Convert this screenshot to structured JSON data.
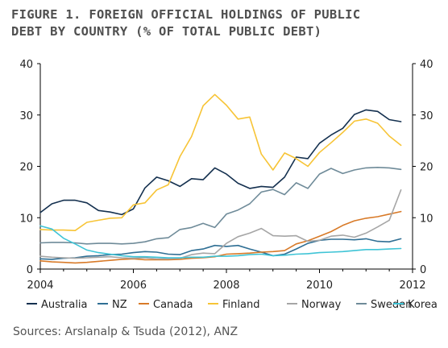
{
  "title_lines": [
    "FIGURE 1. FOREIGN OFFICIAL HOLDINGS OF PUBLIC",
    "DEBT BY COUNTRY (% OF TOTAL PUBLIC DEBT)"
  ],
  "source": "Sources: Arslanalp & Tsuda (2012), ANZ",
  "chart_data": {
    "type": "line",
    "title": "FIGURE 1. FOREIGN OFFICIAL HOLDINGS OF PUBLIC DEBT BY COUNTRY (% OF TOTAL PUBLIC DEBT)",
    "xlabel": "",
    "ylabel": "",
    "xlim": [
      2004,
      2012
    ],
    "ylim": [
      0,
      40
    ],
    "x_ticks": [
      "2004",
      "2006",
      "2008",
      "2010",
      "2012"
    ],
    "y_ticks": [
      "0",
      "10",
      "20",
      "30",
      "40"
    ],
    "y2_ticks": [
      "0",
      "10",
      "20",
      "30",
      "40"
    ],
    "grid": false,
    "legend_position": "bottom",
    "x": [
      2004.0,
      2004.25,
      2004.5,
      2004.75,
      2005.0,
      2005.25,
      2005.5,
      2005.75,
      2006.0,
      2006.25,
      2006.5,
      2006.75,
      2007.0,
      2007.25,
      2007.5,
      2007.75,
      2008.0,
      2008.25,
      2008.5,
      2008.75,
      2009.0,
      2009.25,
      2009.5,
      2009.75,
      2010.0,
      2010.25,
      2010.5,
      2010.75,
      2011.0,
      2011.25,
      2011.5,
      2011.75
    ],
    "series": [
      {
        "name": "Australia",
        "color": "#14304f",
        "values": [
          11.0,
          12.7,
          13.4,
          13.4,
          12.9,
          11.4,
          11.1,
          10.6,
          11.7,
          15.8,
          17.9,
          17.2,
          16.1,
          17.6,
          17.4,
          19.7,
          18.5,
          16.7,
          15.7,
          16.1,
          15.9,
          17.9,
          21.8,
          21.5,
          24.5,
          26.1,
          27.4,
          30.1,
          31.0,
          30.7,
          29.1,
          28.7
        ]
      },
      {
        "name": "NZ",
        "color": "#2f6f94",
        "values": [
          2.0,
          1.9,
          2.1,
          2.2,
          2.5,
          2.6,
          2.8,
          2.9,
          3.2,
          3.4,
          3.3,
          2.9,
          2.8,
          3.6,
          3.9,
          4.6,
          4.4,
          4.6,
          3.9,
          3.3,
          2.6,
          2.9,
          3.9,
          5.0,
          5.6,
          5.8,
          5.8,
          5.7,
          5.9,
          5.4,
          5.3,
          5.9
        ]
      },
      {
        "name": "Canada",
        "color": "#d87a28",
        "values": [
          1.6,
          1.4,
          1.3,
          1.2,
          1.3,
          1.5,
          1.7,
          1.9,
          2.0,
          1.8,
          1.8,
          1.8,
          1.9,
          2.1,
          2.2,
          2.4,
          2.9,
          3.0,
          3.1,
          3.3,
          3.4,
          3.6,
          4.9,
          5.5,
          6.4,
          7.3,
          8.5,
          9.4,
          9.9,
          10.2,
          10.7,
          11.2
        ]
      },
      {
        "name": "Finland",
        "color": "#f7c436",
        "values": [
          7.7,
          7.6,
          7.6,
          7.5,
          9.1,
          9.5,
          9.9,
          10.0,
          12.5,
          12.9,
          15.4,
          16.4,
          21.9,
          25.8,
          31.8,
          34.0,
          31.9,
          29.2,
          29.6,
          22.4,
          19.3,
          22.6,
          21.5,
          20.0,
          22.7,
          24.6,
          26.6,
          28.8,
          29.2,
          28.4,
          25.9,
          24.1
        ]
      },
      {
        "name": "Norway",
        "color": "#a6a6a6",
        "values": [
          2.5,
          2.3,
          2.2,
          2.1,
          2.2,
          2.3,
          2.4,
          2.2,
          2.1,
          2.2,
          2.0,
          2.0,
          2.1,
          2.8,
          3.1,
          3.0,
          5.0,
          6.3,
          7.0,
          7.9,
          6.5,
          6.4,
          6.5,
          5.4,
          5.6,
          6.4,
          6.6,
          6.2,
          7.0,
          8.2,
          9.5,
          15.4
        ]
      },
      {
        "name": "Sweden",
        "color": "#6f8b99",
        "values": [
          5.1,
          5.2,
          5.2,
          5.1,
          4.9,
          5.0,
          5.0,
          4.9,
          5.0,
          5.3,
          5.9,
          6.1,
          7.7,
          8.1,
          8.9,
          8.1,
          10.7,
          11.5,
          12.7,
          15.0,
          15.5,
          14.5,
          16.8,
          15.7,
          18.5,
          19.6,
          18.6,
          19.3,
          19.7,
          19.8,
          19.7,
          19.4
        ]
      },
      {
        "name": "Korea",
        "color": "#3fc4d6",
        "values": [
          8.4,
          7.8,
          6.0,
          4.9,
          3.7,
          3.2,
          2.9,
          2.6,
          2.4,
          2.4,
          2.3,
          2.2,
          2.2,
          2.3,
          2.3,
          2.5,
          2.5,
          2.6,
          2.8,
          2.9,
          2.6,
          2.7,
          2.9,
          3.0,
          3.2,
          3.3,
          3.4,
          3.6,
          3.8,
          3.8,
          3.9,
          4.0
        ]
      }
    ]
  }
}
